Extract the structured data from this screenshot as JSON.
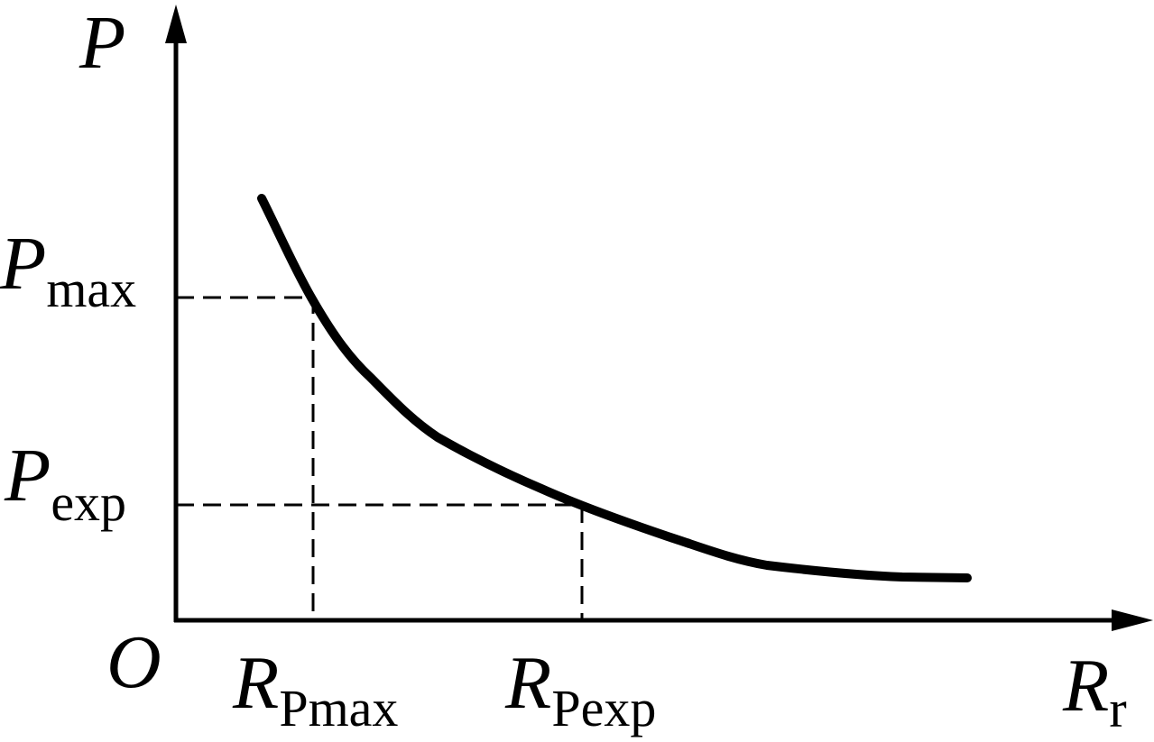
{
  "y_axis": {
    "label": "P"
  },
  "x_axis": {
    "label": {
      "main": "R",
      "sub": "r"
    }
  },
  "origin": "O",
  "y_markers": [
    {
      "main": "P",
      "sub": "max"
    },
    {
      "main": "P",
      "sub": "exp"
    }
  ],
  "x_markers": [
    {
      "main": "R",
      "sub": "Pmax"
    },
    {
      "main": "R",
      "sub": "Pexp"
    }
  ]
}
